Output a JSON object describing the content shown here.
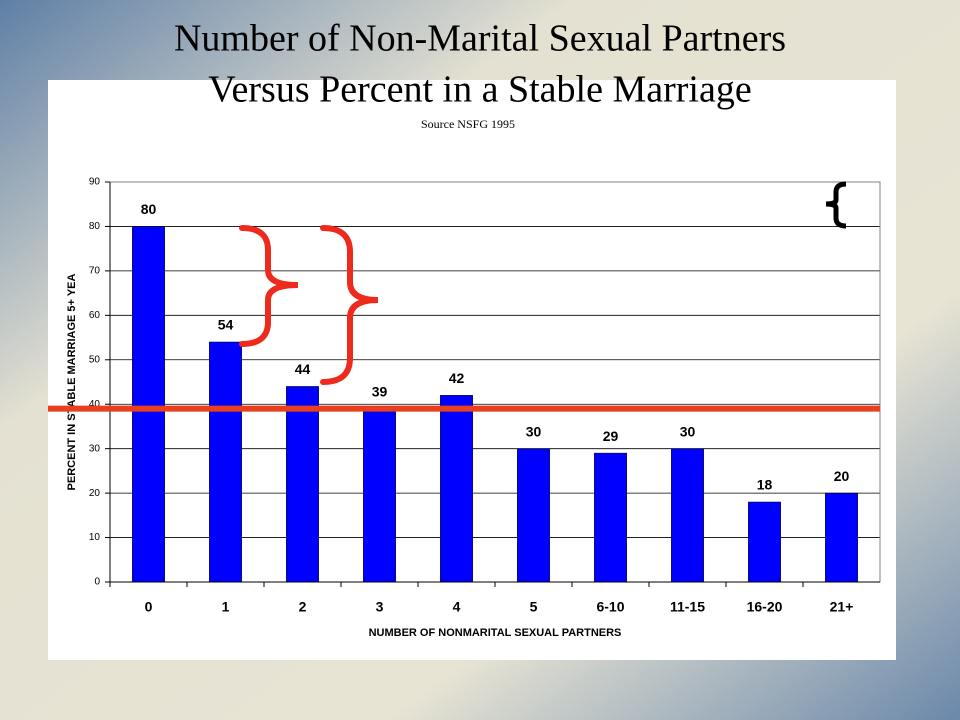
{
  "chart_data": {
    "type": "bar",
    "title": [
      "Number of Non-Marital Sexual Partners",
      "Versus Percent in a Stable Marriage"
    ],
    "subtitle": "Source NSFG 1995",
    "x_label": "NUMBER OF NONMARITAL SEXUAL PARTNERS",
    "y_label": "PERCENT IN STABLE MARRIAGE 5+ YEA",
    "categories": [
      "0",
      "1",
      "2",
      "3",
      "4",
      "5",
      "6-10",
      "11-15",
      "16-20",
      "21+"
    ],
    "values": [
      80,
      54,
      44,
      39,
      42,
      30,
      29,
      30,
      18,
      20
    ],
    "color": "#0000ff",
    "ylim": [
      0,
      90
    ],
    "yticks": [
      0,
      10,
      20,
      30,
      40,
      50,
      60,
      70,
      80,
      90
    ],
    "grid": true,
    "reference_line": {
      "value": 39,
      "color": "#e8401c"
    }
  }
}
